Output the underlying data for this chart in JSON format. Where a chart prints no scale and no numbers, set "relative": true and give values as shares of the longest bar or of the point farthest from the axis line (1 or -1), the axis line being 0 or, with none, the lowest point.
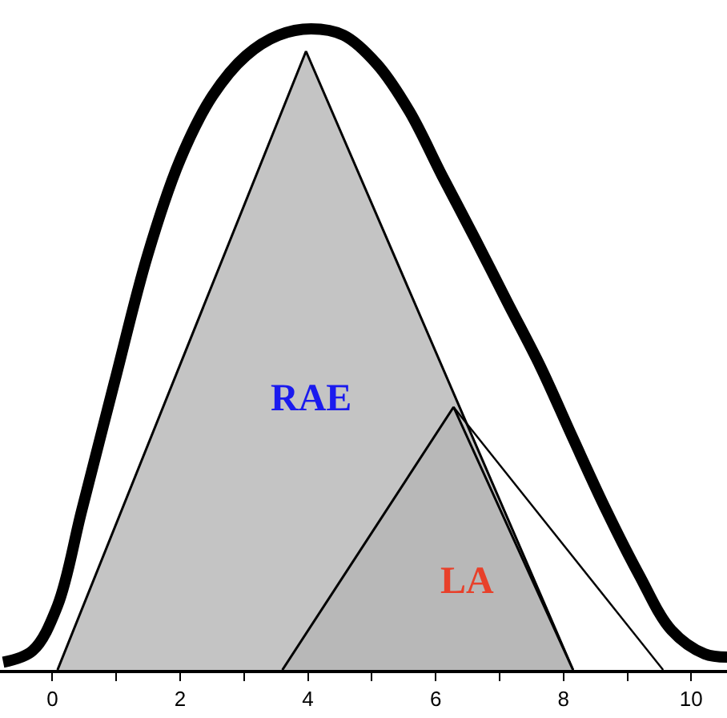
{
  "chart_data": {
    "type": "line",
    "relative": true,
    "xlim": [
      -0.82,
      10.56
    ],
    "xticks": [
      0,
      {
        "value": 1,
        "label": null
      },
      2,
      {
        "value": 3,
        "label": null
      },
      4,
      {
        "value": 5,
        "label": null
      },
      6,
      {
        "value": 7,
        "label": null
      },
      8,
      {
        "value": 9,
        "label": null
      },
      10
    ],
    "legend": false,
    "marker": "none",
    "line_style": "solid",
    "series": [
      {
        "color": "#000000",
        "x": [
          -0.77,
          -0.31,
          0.08,
          0.46,
          0.97,
          1.49,
          2.0,
          2.51,
          3.03,
          3.54,
          4.05,
          4.56,
          5.08,
          5.59,
          6.1,
          6.62,
          7.13,
          7.64,
          8.15,
          8.67,
          9.18,
          9.69,
          10.21,
          10.56
        ],
        "values": [
          0.012,
          0.03,
          0.1,
          0.249,
          0.448,
          0.647,
          0.796,
          0.896,
          0.958,
          0.99,
          1.0,
          0.99,
          0.945,
          0.871,
          0.771,
          0.672,
          0.572,
          0.473,
          0.361,
          0.249,
          0.149,
          0.062,
          0.025,
          0.02
        ]
      },
      {
        "type": "area",
        "name": "RAE",
        "color": "#c4c4c4",
        "x": [
          0.08,
          3.97,
          8.15
        ],
        "values": [
          0,
          0.965,
          0
        ]
      },
      {
        "type": "area",
        "name": "LA",
        "color": "#b8b8b8",
        "x": [
          3.6,
          6.28,
          8.15
        ],
        "values": [
          0,
          0.41,
          0
        ]
      },
      {
        "color": "#000000",
        "x": [
          6.28,
          9.56
        ],
        "values": [
          0.41,
          0
        ]
      }
    ]
  }
}
